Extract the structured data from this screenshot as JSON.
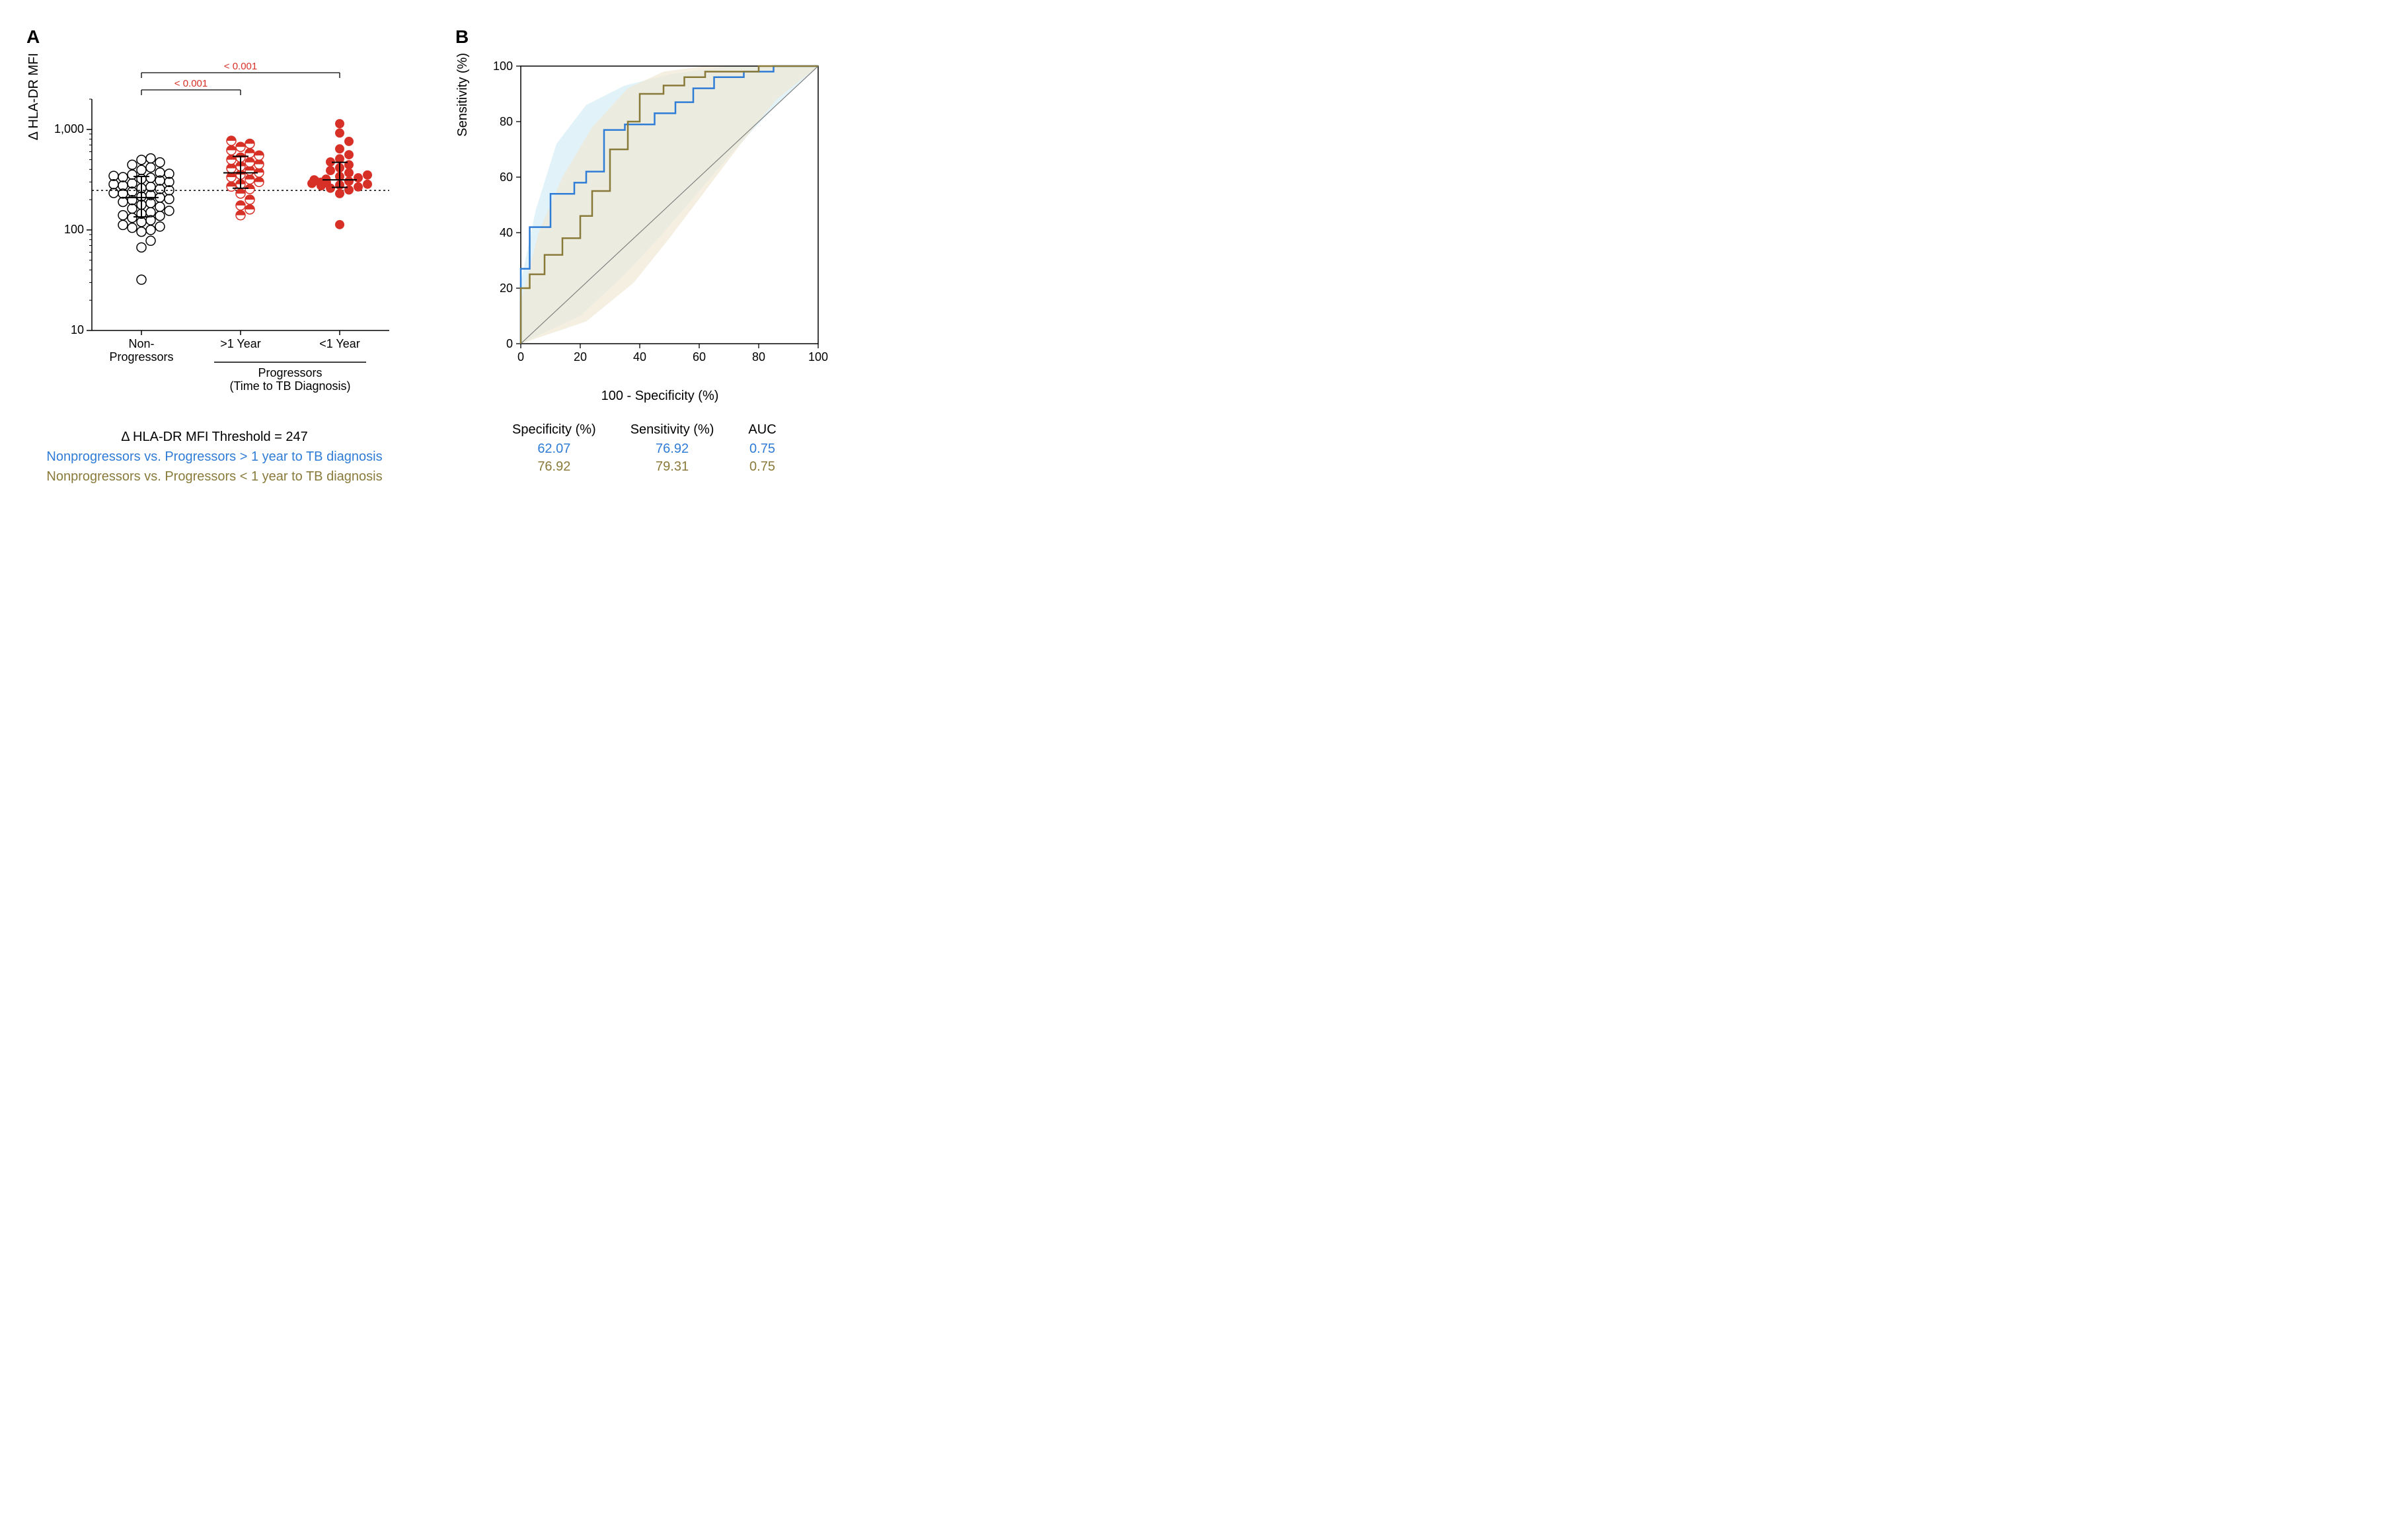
{
  "panelA": {
    "label": "A",
    "ylabel": "Δ HLA-DR MFI",
    "ylog": true,
    "ylim_min": 10,
    "ylim_max": 2000,
    "yticks": [
      10,
      100,
      1000
    ],
    "threshold_line": 247,
    "pval_color": "#d73027",
    "pvals": [
      {
        "text": "< 0.001",
        "from": 0,
        "to": 1
      },
      {
        "text": "< 0.001",
        "from": 0,
        "to": 2
      }
    ],
    "groups": [
      {
        "name": "Non-\nProgressors",
        "style": "open",
        "median": 210,
        "q1": 135,
        "q3": 340,
        "points": [
          32,
          67,
          78,
          96,
          100,
          105,
          108,
          112,
          120,
          125,
          132,
          138,
          140,
          145,
          150,
          155,
          163,
          170,
          178,
          185,
          190,
          198,
          203,
          210,
          215,
          222,
          230,
          233,
          240,
          248,
          255,
          260,
          268,
          276,
          285,
          290,
          300,
          310,
          322,
          330,
          335,
          345,
          355,
          362,
          372,
          395,
          418,
          445,
          470,
          498,
          515
        ]
      },
      {
        "name": ">1 Year",
        "style": "half",
        "median": 370,
        "q1": 260,
        "q3": 540,
        "points": [
          140,
          160,
          175,
          200,
          230,
          255,
          270,
          285,
          300,
          318,
          335,
          355,
          372,
          390,
          410,
          430,
          450,
          470,
          500,
          525,
          550,
          580,
          620,
          670,
          720,
          770
        ]
      },
      {
        "name": "<1 Year",
        "style": "filled",
        "median": 315,
        "q1": 265,
        "q3": 470,
        "points": [
          113,
          230,
          250,
          260,
          268,
          275,
          280,
          285,
          290,
          295,
          298,
          305,
          308,
          315,
          320,
          330,
          340,
          352,
          370,
          390,
          415,
          445,
          475,
          510,
          560,
          640,
          760,
          920,
          1140
        ]
      }
    ],
    "bracket_label": "Progressors\n(Time to TB Diagnosis)",
    "marker_fill": "#d73027",
    "open_stroke": "#000000",
    "bg": "#ffffff",
    "axis_color": "#000000",
    "footer_lines": [
      {
        "text": "Δ HLA-DR MFI Threshold = 247",
        "color": "#000000"
      },
      {
        "text": "Nonprogressors vs. Progressors > 1 year to TB diagnosis",
        "color": "#2f7cd6"
      },
      {
        "text": "Nonprogressors vs. Progressors < 1 year to TB diagnosis",
        "color": "#8a7a3a"
      }
    ]
  },
  "panelB": {
    "label": "B",
    "ylabel": "Sensitivity (%)",
    "xlabel": "100 - Specificity (%)",
    "xlim": [
      0,
      100
    ],
    "ylim": [
      0,
      100
    ],
    "ticks": [
      0,
      20,
      40,
      60,
      80,
      100
    ],
    "diag_color": "#808080",
    "curves": [
      {
        "name": "blue",
        "color": "#2f7cd6",
        "ci_fill": "#d6ecf7",
        "line": [
          [
            0,
            0
          ],
          [
            0,
            27
          ],
          [
            3,
            27
          ],
          [
            3,
            42
          ],
          [
            10,
            42
          ],
          [
            10,
            54
          ],
          [
            18,
            54
          ],
          [
            18,
            58
          ],
          [
            22,
            58
          ],
          [
            22,
            62
          ],
          [
            28,
            62
          ],
          [
            28,
            77
          ],
          [
            35,
            77
          ],
          [
            35,
            79
          ],
          [
            45,
            79
          ],
          [
            45,
            83
          ],
          [
            52,
            83
          ],
          [
            52,
            87
          ],
          [
            58,
            87
          ],
          [
            58,
            92
          ],
          [
            65,
            92
          ],
          [
            65,
            96
          ],
          [
            75,
            96
          ],
          [
            75,
            98
          ],
          [
            85,
            98
          ],
          [
            85,
            100
          ],
          [
            100,
            100
          ]
        ],
        "ci_upper": [
          [
            0,
            22
          ],
          [
            5,
            48
          ],
          [
            12,
            72
          ],
          [
            22,
            86
          ],
          [
            35,
            93
          ],
          [
            50,
            97
          ],
          [
            70,
            100
          ],
          [
            100,
            100
          ]
        ],
        "ci_lower": [
          [
            0,
            0
          ],
          [
            20,
            10
          ],
          [
            35,
            25
          ],
          [
            48,
            40
          ],
          [
            60,
            55
          ],
          [
            72,
            70
          ],
          [
            85,
            85
          ],
          [
            100,
            100
          ]
        ]
      },
      {
        "name": "olive",
        "color": "#8a7a3a",
        "ci_fill": "#efe8d4",
        "line": [
          [
            0,
            0
          ],
          [
            0,
            20
          ],
          [
            3,
            20
          ],
          [
            3,
            25
          ],
          [
            8,
            25
          ],
          [
            8,
            32
          ],
          [
            14,
            32
          ],
          [
            14,
            38
          ],
          [
            20,
            38
          ],
          [
            20,
            46
          ],
          [
            24,
            46
          ],
          [
            24,
            55
          ],
          [
            30,
            55
          ],
          [
            30,
            70
          ],
          [
            36,
            70
          ],
          [
            36,
            80
          ],
          [
            40,
            80
          ],
          [
            40,
            90
          ],
          [
            48,
            90
          ],
          [
            48,
            93
          ],
          [
            55,
            93
          ],
          [
            55,
            96
          ],
          [
            62,
            96
          ],
          [
            62,
            98
          ],
          [
            80,
            98
          ],
          [
            80,
            100
          ],
          [
            100,
            100
          ]
        ],
        "ci_upper": [
          [
            0,
            15
          ],
          [
            6,
            40
          ],
          [
            14,
            60
          ],
          [
            24,
            78
          ],
          [
            36,
            92
          ],
          [
            48,
            98
          ],
          [
            62,
            100
          ],
          [
            100,
            100
          ]
        ],
        "ci_lower": [
          [
            0,
            0
          ],
          [
            22,
            8
          ],
          [
            38,
            22
          ],
          [
            50,
            38
          ],
          [
            62,
            55
          ],
          [
            74,
            72
          ],
          [
            86,
            88
          ],
          [
            100,
            100
          ]
        ]
      }
    ],
    "stats": {
      "headers": [
        "Specificity (%)",
        "Sensitivity (%)",
        "AUC"
      ],
      "rows": [
        {
          "color": "#2f7cd6",
          "vals": [
            "62.07",
            "76.92",
            "0.75"
          ]
        },
        {
          "color": "#8a7a3a",
          "vals": [
            "76.92",
            "79.31",
            "0.75"
          ]
        }
      ]
    }
  }
}
